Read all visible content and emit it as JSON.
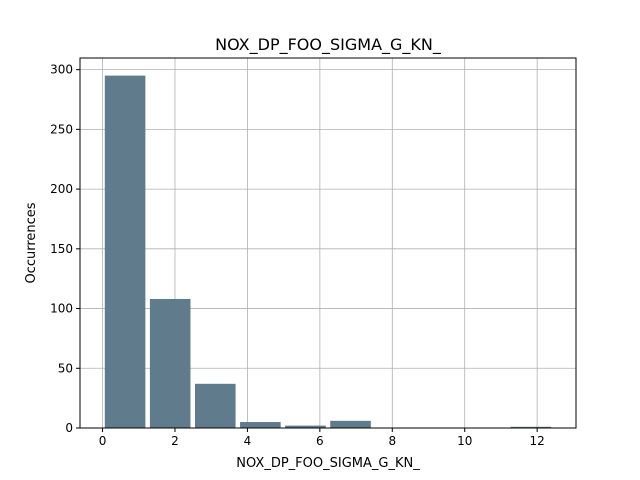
{
  "chart_data": {
    "type": "bar",
    "title": "NOX_DP_FOO_SIGMA_G_KN_",
    "xlabel": "NOX_DP_FOO_SIGMA_G_KN_",
    "ylabel": "Occurrences",
    "x": [
      0.0,
      1.245,
      2.49,
      3.735,
      4.98,
      6.225,
      7.47,
      8.715,
      9.96,
      11.205
    ],
    "bin_edges": [
      0.0,
      1.245,
      2.49,
      3.735,
      4.98,
      6.225,
      7.47,
      8.715,
      9.96,
      11.205,
      12.45
    ],
    "values": [
      295,
      108,
      37,
      5,
      2,
      6,
      0,
      0,
      0,
      1
    ],
    "xlim": [
      -0.6225,
      13.0725
    ],
    "ylim": [
      0,
      309.75
    ],
    "xticks": [
      0,
      2,
      4,
      6,
      8,
      10,
      12
    ],
    "yticks": [
      0,
      50,
      100,
      150,
      200,
      250,
      300
    ],
    "grid": true,
    "bar_color": "#607b8b",
    "grid_color": "#b0b0b0"
  }
}
